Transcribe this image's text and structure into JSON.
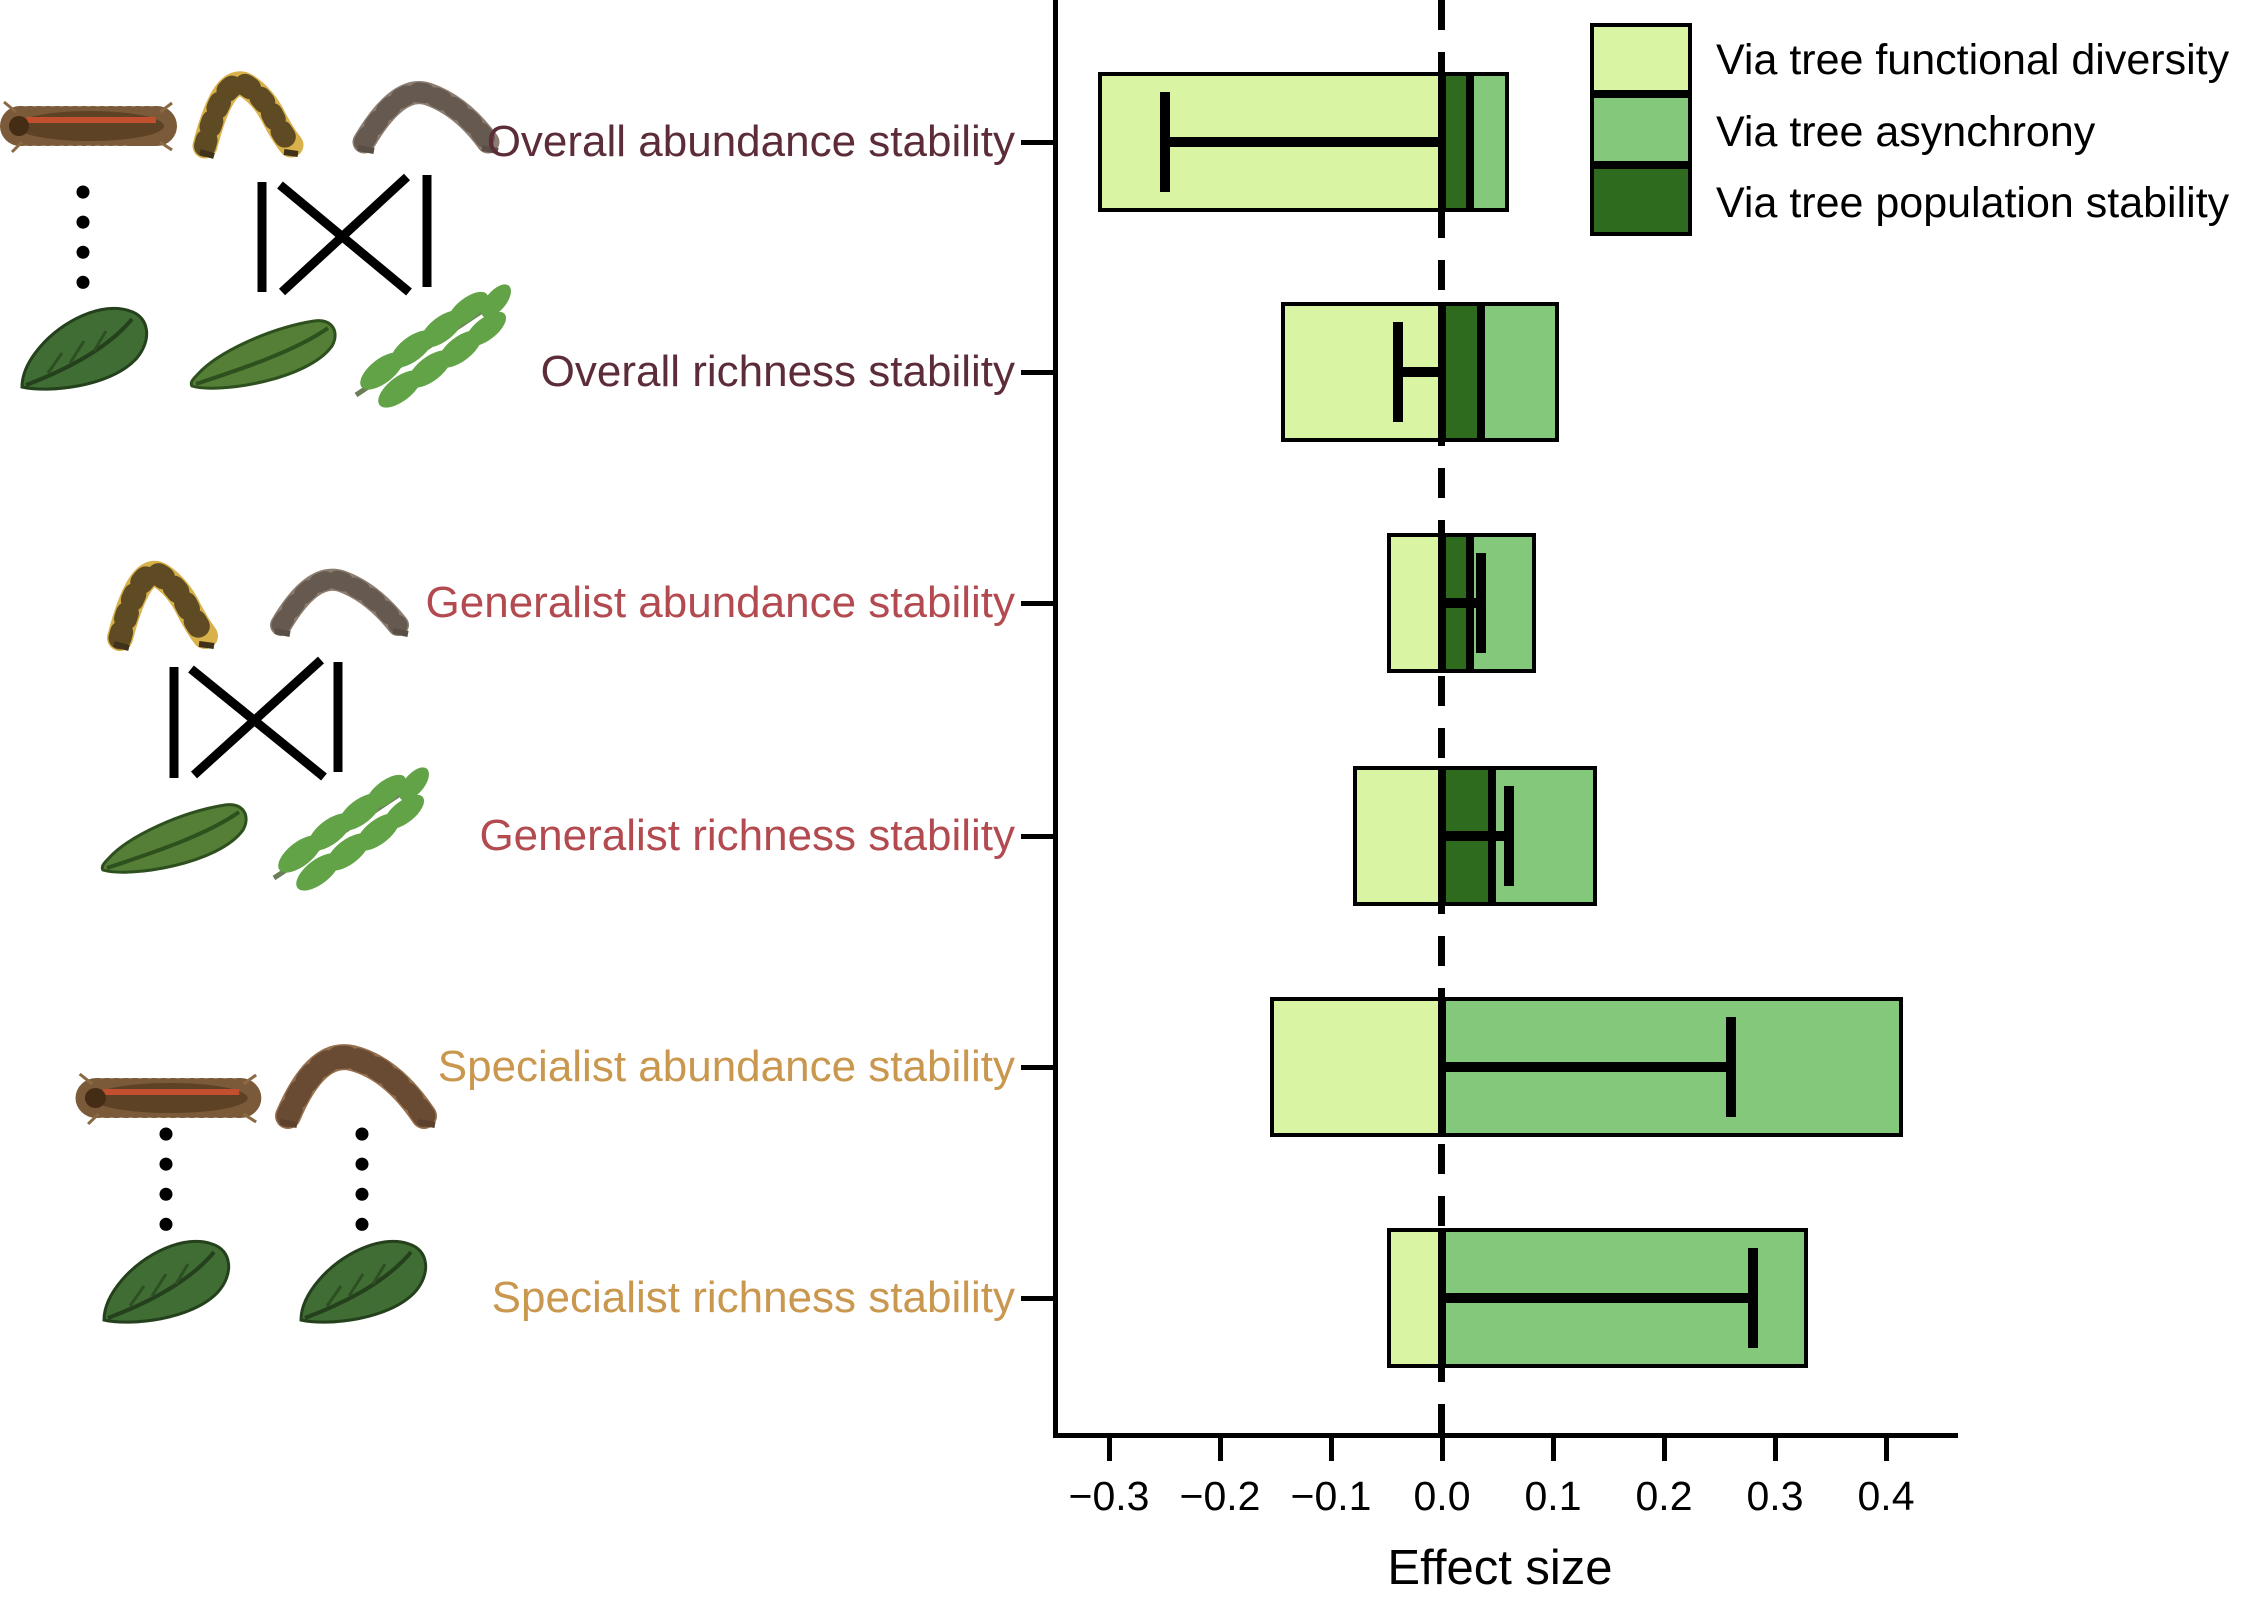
{
  "axis": {
    "label": "Effect size",
    "ticks": [
      "−0.3",
      "−0.2",
      "−0.1",
      "0.0",
      "0.1",
      "0.2",
      "0.3",
      "0.4"
    ]
  },
  "legend": {
    "items": [
      {
        "label": "Via tree functional diversity",
        "color": "#d9f4a3"
      },
      {
        "label": "Via tree asynchrony",
        "color": "#84c87b"
      },
      {
        "label": "Via tree population stability",
        "color": "#2f6b1f"
      }
    ]
  },
  "rows": [
    {
      "label": "Overall abundance stability",
      "color": "#5c2d38"
    },
    {
      "label": "Overall richness stability",
      "color": "#5c2d38"
    },
    {
      "label": "Generalist abundance stability",
      "color": "#b24a50"
    },
    {
      "label": "Generalist richness stability",
      "color": "#b24a50"
    },
    {
      "label": "Specialist abundance stability",
      "color": "#c9974e"
    },
    {
      "label": "Specialist richness stability",
      "color": "#c9974e"
    }
  ],
  "chart_data": {
    "type": "bar",
    "orientation": "horizontal-diverging-stacked",
    "title": "",
    "xlabel": "Effect size",
    "xlim": [
      -0.35,
      0.46
    ],
    "xticks": [
      -0.3,
      -0.2,
      -0.1,
      0.0,
      0.1,
      0.2,
      0.3,
      0.4
    ],
    "grid": false,
    "zero_reference_line": true,
    "legend_position": "top-right",
    "categories": [
      "Overall abundance stability",
      "Overall richness stability",
      "Generalist abundance stability",
      "Generalist richness stability",
      "Specialist abundance stability",
      "Specialist richness stability"
    ],
    "series": [
      {
        "name": "Via tree functional diversity",
        "color": "#d9f4a3",
        "values": [
          -0.31,
          -0.145,
          -0.05,
          -0.08,
          -0.155,
          -0.05
        ]
      },
      {
        "name": "Via tree population stability",
        "color": "#2f6b1f",
        "values": [
          0.025,
          0.035,
          0.025,
          0.045,
          0.0,
          0.0
        ]
      },
      {
        "name": "Via tree asynchrony",
        "color": "#84c87b",
        "values": [
          0.035,
          0.07,
          0.06,
          0.095,
          0.415,
          0.33
        ]
      }
    ],
    "net_effect_markers": [
      -0.25,
      -0.04,
      0.035,
      0.06,
      0.26,
      0.28
    ]
  }
}
